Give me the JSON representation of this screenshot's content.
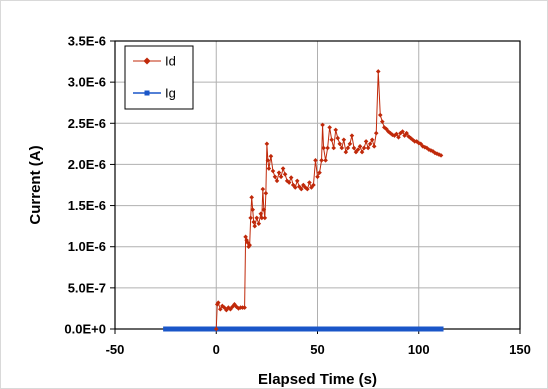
{
  "chart_data": {
    "type": "scatter",
    "xlabel": "Elapsed Time (s)",
    "ylabel": "Current (A)",
    "xlim": [
      -50,
      150
    ],
    "ylim": [
      0,
      3.5e-06
    ],
    "x_ticks": [
      -50,
      0,
      50,
      100,
      150
    ],
    "x_tick_labels": [
      "-50",
      "0",
      "50",
      "100",
      "150"
    ],
    "y_ticks": [
      0,
      5e-07,
      1e-06,
      1.5e-06,
      2e-06,
      2.5e-06,
      3e-06,
      3.5e-06
    ],
    "y_tick_labels": [
      "0.0E+0",
      "5.0E-7",
      "1.0E-6",
      "1.5E-6",
      "2.0E-6",
      "2.5E-6",
      "3.0E-6",
      "3.5E-6"
    ],
    "grid": true,
    "legend_position": "top-left",
    "series": [
      {
        "name": "Id",
        "color": "#c0290a",
        "marker": "diamond",
        "line": true,
        "points": [
          [
            0,
            0
          ],
          [
            0.5,
            3e-07
          ],
          [
            1,
            3.2e-07
          ],
          [
            2,
            2.4e-07
          ],
          [
            3,
            2.8e-07
          ],
          [
            4,
            2.6e-07
          ],
          [
            5,
            2.3e-07
          ],
          [
            6,
            2.6e-07
          ],
          [
            7,
            2.4e-07
          ],
          [
            8,
            2.7e-07
          ],
          [
            9,
            3e-07
          ],
          [
            10,
            2.7e-07
          ],
          [
            11,
            2.5e-07
          ],
          [
            12,
            2.6e-07
          ],
          [
            13,
            2.6e-07
          ],
          [
            14,
            2.6e-07
          ],
          [
            14.5,
            1.12e-06
          ],
          [
            15,
            1.08e-06
          ],
          [
            15.5,
            1.05e-06
          ],
          [
            16,
            1e-06
          ],
          [
            16.5,
            1.02e-06
          ],
          [
            17,
            1.35e-06
          ],
          [
            17.5,
            1.6e-06
          ],
          [
            18,
            1.45e-06
          ],
          [
            18.5,
            1.3e-06
          ],
          [
            19,
            1.25e-06
          ],
          [
            20,
            1.35e-06
          ],
          [
            21,
            1.28e-06
          ],
          [
            22,
            1.4e-06
          ],
          [
            22.5,
            1.35e-06
          ],
          [
            23,
            1.7e-06
          ],
          [
            23.5,
            1.45e-06
          ],
          [
            24,
            1.35e-06
          ],
          [
            24.5,
            1.65e-06
          ],
          [
            25,
            2.25e-06
          ],
          [
            25.5,
            2.05e-06
          ],
          [
            26,
            1.95e-06
          ],
          [
            27,
            2.1e-06
          ],
          [
            28,
            1.92e-06
          ],
          [
            29,
            1.85e-06
          ],
          [
            30,
            1.8e-06
          ],
          [
            31,
            1.9e-06
          ],
          [
            32,
            1.85e-06
          ],
          [
            33,
            1.95e-06
          ],
          [
            34,
            1.88e-06
          ],
          [
            35,
            1.8e-06
          ],
          [
            36,
            1.78e-06
          ],
          [
            37,
            1.84e-06
          ],
          [
            38,
            1.75e-06
          ],
          [
            39,
            1.72e-06
          ],
          [
            40,
            1.8e-06
          ],
          [
            41,
            1.73e-06
          ],
          [
            42,
            1.7e-06
          ],
          [
            43,
            1.75e-06
          ],
          [
            44,
            1.72e-06
          ],
          [
            45,
            1.7e-06
          ],
          [
            46,
            1.78e-06
          ],
          [
            47,
            1.72e-06
          ],
          [
            48,
            1.75e-06
          ],
          [
            49,
            2.05e-06
          ],
          [
            50,
            1.85e-06
          ],
          [
            51,
            1.9e-06
          ],
          [
            52,
            2.05e-06
          ],
          [
            52.5,
            2.48e-06
          ],
          [
            53,
            2.2e-06
          ],
          [
            54,
            2.05e-06
          ],
          [
            55,
            2.2e-06
          ],
          [
            56,
            2.45e-06
          ],
          [
            57,
            2.3e-06
          ],
          [
            58,
            2.2e-06
          ],
          [
            59,
            2.42e-06
          ],
          [
            60,
            2.32e-06
          ],
          [
            61,
            2.25e-06
          ],
          [
            62,
            2.2e-06
          ],
          [
            63,
            2.3e-06
          ],
          [
            64,
            2.15e-06
          ],
          [
            65,
            2.2e-06
          ],
          [
            66,
            2.25e-06
          ],
          [
            67,
            2.35e-06
          ],
          [
            68,
            2.2e-06
          ],
          [
            69,
            2.15e-06
          ],
          [
            70,
            2.18e-06
          ],
          [
            71,
            2.22e-06
          ],
          [
            72,
            2.15e-06
          ],
          [
            73,
            2.2e-06
          ],
          [
            74,
            2.28e-06
          ],
          [
            75,
            2.2e-06
          ],
          [
            76,
            2.25e-06
          ],
          [
            77,
            2.3e-06
          ],
          [
            78,
            2.22e-06
          ],
          [
            79,
            2.38e-06
          ],
          [
            80,
            3.13e-06
          ],
          [
            81,
            2.6e-06
          ],
          [
            82,
            2.52e-06
          ],
          [
            83,
            2.45e-06
          ],
          [
            84,
            2.43e-06
          ],
          [
            85,
            2.4e-06
          ],
          [
            86,
            2.38e-06
          ],
          [
            87,
            2.36e-06
          ],
          [
            88,
            2.35e-06
          ],
          [
            89,
            2.37e-06
          ],
          [
            90,
            2.33e-06
          ],
          [
            91,
            2.38e-06
          ],
          [
            92,
            2.4e-06
          ],
          [
            93,
            2.35e-06
          ],
          [
            94,
            2.38e-06
          ],
          [
            95,
            2.34e-06
          ],
          [
            96,
            2.32e-06
          ],
          [
            97,
            2.3e-06
          ],
          [
            98,
            2.28e-06
          ],
          [
            99,
            2.28e-06
          ],
          [
            100,
            2.26e-06
          ],
          [
            101,
            2.25e-06
          ],
          [
            102,
            2.22e-06
          ],
          [
            103,
            2.21e-06
          ],
          [
            104,
            2.2e-06
          ],
          [
            105,
            2.18e-06
          ],
          [
            106,
            2.17e-06
          ],
          [
            107,
            2.16e-06
          ],
          [
            108,
            2.14e-06
          ],
          [
            109,
            2.13e-06
          ],
          [
            110,
            2.12e-06
          ],
          [
            111,
            2.11e-06
          ]
        ]
      },
      {
        "name": "Ig",
        "color": "#1a56c8",
        "marker": "square",
        "line": true,
        "x_range": [
          -25,
          111
        ],
        "x_step": 1,
        "y": 0
      }
    ]
  }
}
